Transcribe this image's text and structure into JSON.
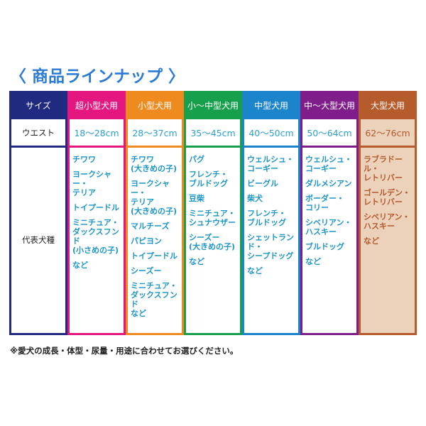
{
  "title": "〈 商品ラインナップ 〉",
  "row_labels": {
    "size": "サイズ",
    "waist": "ウエスト",
    "breeds": "代表犬種"
  },
  "colors": {
    "label": "#1f2a80",
    "super_small": "#e3177f",
    "small": "#ef8a1e",
    "small_medium": "#17a04b",
    "medium": "#1b84cb",
    "medium_large": "#7f1d8b",
    "large": "#b65b2c",
    "large_bg": "#ecd2bb",
    "text": "#1e96c8",
    "large_text": "#b35a2e"
  },
  "columns": [
    {
      "size": "超小型犬用",
      "waist": "18～28cm",
      "breeds": [
        "チワワ",
        "ヨークシャー・\nテリア",
        "トイプードル",
        "ミニチュア・\nダックスフンド\n(小さめの子)",
        "など"
      ]
    },
    {
      "size": "小型犬用",
      "waist": "28～37cm",
      "breeds": [
        "チワワ\n(大きめの子)",
        "ヨークシャー・\nテリア\n(大きめの子)",
        "マルチーズ",
        "パピヨン",
        "トイプードル",
        "シーズー",
        "ミニチュア・\nダックスフンド\nなど"
      ]
    },
    {
      "size": "小～中型犬用",
      "waist": "35～45cm",
      "breeds": [
        "パグ",
        "フレンチ・\nブルドッグ",
        "豆柴",
        "ミニチュア・\nシュナウザー",
        "シーズー\n(大きめの子)",
        "など"
      ]
    },
    {
      "size": "中型犬用",
      "waist": "40～50cm",
      "breeds": [
        "ウェルシュ・\nコーギー",
        "ビーグル",
        "柴犬",
        "フレンチ・\nブルドッグ",
        "シェットランド・\nシープドッグ",
        "など"
      ]
    },
    {
      "size": "中～大型犬用",
      "waist": "50～64cm",
      "breeds": [
        "ウェルシュ・\nコーギー",
        "ダルメシアン",
        "ボーダー・\nコリー",
        "シベリアン・\nハスキー",
        "ブルドッグ",
        "など"
      ]
    },
    {
      "size": "大型犬用",
      "waist": "62～76cm",
      "breeds": [
        "ラブラドール・\nレトリバー",
        "ゴールデン・\nレトリバー",
        "シベリアン・\nハスキー",
        "など"
      ]
    }
  ],
  "footnote": "※愛犬の成長・体型・尿量・用途に合わせてお選びください。"
}
